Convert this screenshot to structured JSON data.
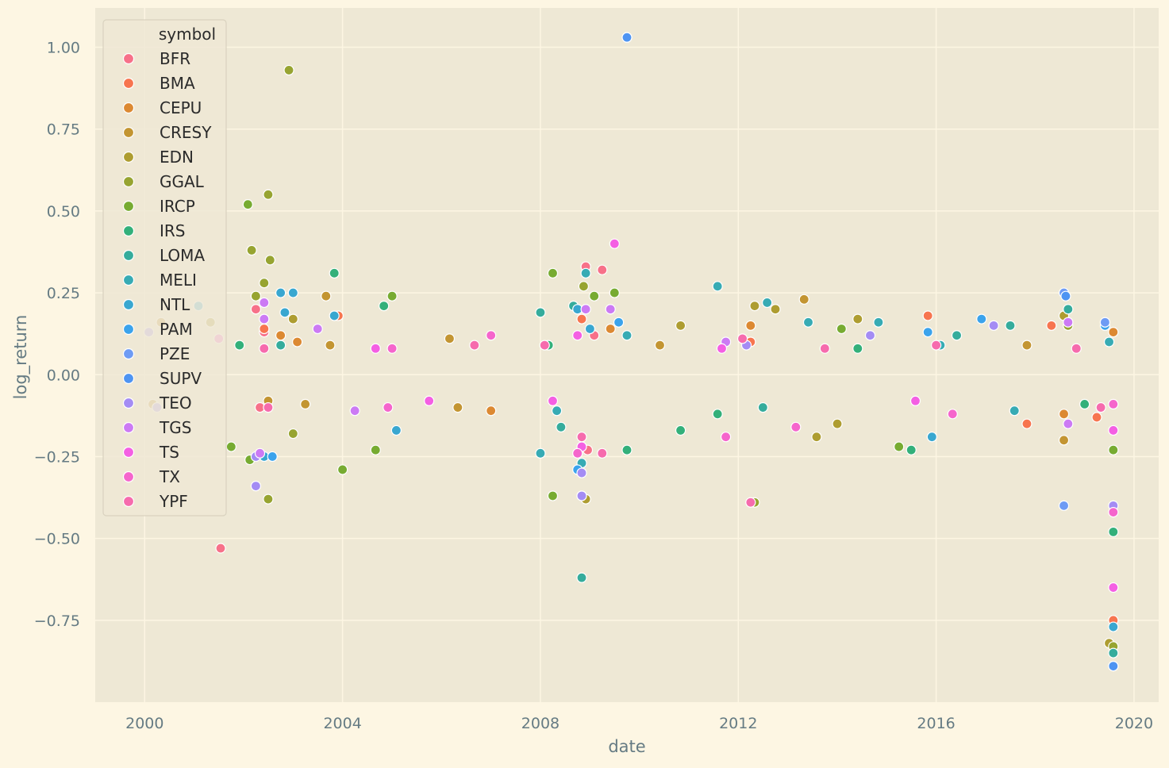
{
  "chart_data": {
    "type": "scatter",
    "title": "",
    "xlabel": "date",
    "ylabel": "log_return",
    "xlim": [
      "1999-01-01",
      "2020-07-01"
    ],
    "ylim": [
      -1.0,
      1.12
    ],
    "x_ticks": [
      "2000",
      "2004",
      "2008",
      "2012",
      "2016",
      "2020"
    ],
    "y_ticks": [
      "−0.75",
      "−0.50",
      "−0.25",
      "0.00",
      "0.25",
      "0.50",
      "0.75",
      "1.00"
    ],
    "y_tick_values": [
      -0.75,
      -0.5,
      -0.25,
      0.0,
      0.25,
      0.5,
      0.75,
      1.0
    ],
    "grid": true,
    "legend": {
      "title": "symbol",
      "placement": "top-left"
    },
    "series": [
      {
        "name": "BFR",
        "color": "#f77189",
        "points": [
          [
            "2001-07-15",
            -0.53
          ],
          [
            "2002-03-01",
            0.38
          ],
          [
            "2002-04-01",
            0.2
          ],
          [
            "2002-06-01",
            0.13
          ],
          [
            "2002-05-01",
            -0.1
          ],
          [
            "2008-12-01",
            0.33
          ],
          [
            "2008-12-15",
            -0.23
          ],
          [
            "2009-04-01",
            0.32
          ],
          [
            "2009-02-01",
            0.12
          ]
        ]
      },
      {
        "name": "BMA",
        "color": "#f7754f",
        "points": [
          [
            "2002-06-01",
            0.14
          ],
          [
            "2003-12-01",
            0.18
          ],
          [
            "2008-11-01",
            0.17
          ],
          [
            "2012-04-01",
            0.1
          ],
          [
            "2015-11-01",
            0.18
          ],
          [
            "2018-05-01",
            0.15
          ],
          [
            "2019-04-01",
            -0.13
          ],
          [
            "2019-08-01",
            -0.75
          ],
          [
            "2017-11-01",
            -0.15
          ]
        ]
      },
      {
        "name": "CEPU",
        "color": "#dc8932",
        "points": [
          [
            "2002-10-01",
            0.12
          ],
          [
            "2003-02-01",
            0.1
          ],
          [
            "2007-01-01",
            -0.11
          ],
          [
            "2009-06-01",
            0.14
          ],
          [
            "2012-04-01",
            0.15
          ],
          [
            "2018-08-01",
            -0.12
          ],
          [
            "2019-08-01",
            0.13
          ]
        ]
      },
      {
        "name": "CRESY",
        "color": "#c39532",
        "points": [
          [
            "2000-05-01",
            0.16
          ],
          [
            "2000-03-01",
            -0.09
          ],
          [
            "2003-09-01",
            0.24
          ],
          [
            "2003-10-01",
            0.09
          ],
          [
            "2006-03-01",
            0.11
          ],
          [
            "2006-05-01",
            -0.1
          ],
          [
            "2010-06-01",
            0.09
          ],
          [
            "2013-05-01",
            0.23
          ],
          [
            "2017-11-01",
            0.09
          ],
          [
            "2018-08-01",
            -0.2
          ],
          [
            "2003-04-01",
            -0.09
          ],
          [
            "2002-07-01",
            -0.08
          ]
        ]
      },
      {
        "name": "EDN",
        "color": "#ae9d31",
        "points": [
          [
            "2001-05-01",
            0.16
          ],
          [
            "2003-01-01",
            0.17
          ],
          [
            "2008-12-01",
            -0.38
          ],
          [
            "2012-05-01",
            0.21
          ],
          [
            "2012-10-01",
            0.2
          ],
          [
            "2013-08-01",
            -0.19
          ],
          [
            "2014-06-01",
            0.17
          ],
          [
            "2018-08-01",
            0.18
          ],
          [
            "2019-07-01",
            -0.82
          ],
          [
            "2010-11-01",
            0.15
          ],
          [
            "2014-01-01",
            -0.15
          ]
        ]
      },
      {
        "name": "GGAL",
        "color": "#97a431",
        "points": [
          [
            "2002-12-01",
            0.93
          ],
          [
            "2002-07-01",
            0.55
          ],
          [
            "2002-03-01",
            0.38
          ],
          [
            "2002-07-15",
            0.35
          ],
          [
            "2002-06-01",
            0.28
          ],
          [
            "2002-07-01",
            -0.38
          ],
          [
            "2008-11-01",
            -0.37
          ],
          [
            "2008-11-15",
            0.27
          ],
          [
            "2012-05-01",
            -0.39
          ],
          [
            "2018-09-01",
            0.15
          ],
          [
            "2019-08-01",
            -0.83
          ],
          [
            "2002-04-01",
            0.24
          ],
          [
            "2003-01-01",
            -0.18
          ]
        ]
      },
      {
        "name": "IRCP",
        "color": "#77ab31",
        "points": [
          [
            "2002-02-01",
            0.52
          ],
          [
            "2001-10-01",
            -0.22
          ],
          [
            "2002-02-15",
            -0.26
          ],
          [
            "2008-04-01",
            0.31
          ],
          [
            "2008-04-01",
            -0.37
          ],
          [
            "2009-02-01",
            0.24
          ],
          [
            "2009-07-01",
            0.25
          ],
          [
            "2014-02-01",
            0.14
          ],
          [
            "2015-04-01",
            -0.22
          ],
          [
            "2019-08-01",
            -0.23
          ],
          [
            "2004-01-01",
            -0.29
          ],
          [
            "2004-09-01",
            -0.23
          ],
          [
            "2005-01-01",
            0.24
          ]
        ]
      },
      {
        "name": "IRS",
        "color": "#33b07a",
        "points": [
          [
            "2001-12-01",
            0.09
          ],
          [
            "2003-11-01",
            0.31
          ],
          [
            "2008-03-01",
            0.09
          ],
          [
            "2009-10-01",
            -0.23
          ],
          [
            "2010-11-01",
            -0.17
          ],
          [
            "2011-08-01",
            -0.12
          ],
          [
            "2014-06-01",
            0.08
          ],
          [
            "2015-07-01",
            -0.23
          ],
          [
            "2019-08-01",
            -0.48
          ],
          [
            "2004-11-01",
            0.21
          ],
          [
            "2019-01-01",
            -0.09
          ]
        ]
      },
      {
        "name": "LOMA",
        "color": "#35ac9c",
        "points": [
          [
            "2002-10-01",
            0.09
          ],
          [
            "2008-09-01",
            0.21
          ],
          [
            "2008-11-01",
            -0.62
          ],
          [
            "2008-06-01",
            -0.16
          ],
          [
            "2012-07-01",
            -0.1
          ],
          [
            "2016-06-01",
            0.12
          ],
          [
            "2017-07-01",
            0.15
          ],
          [
            "2018-09-01",
            0.2
          ],
          [
            "2019-08-01",
            -0.85
          ],
          [
            "2008-01-01",
            0.19
          ]
        ]
      },
      {
        "name": "MELI",
        "color": "#37abb4",
        "points": [
          [
            "2008-01-01",
            -0.24
          ],
          [
            "2008-05-01",
            -0.11
          ],
          [
            "2008-12-01",
            0.31
          ],
          [
            "2011-08-01",
            0.27
          ],
          [
            "2012-08-01",
            0.22
          ],
          [
            "2013-06-01",
            0.16
          ],
          [
            "2014-11-01",
            0.16
          ],
          [
            "2016-02-01",
            0.09
          ],
          [
            "2017-08-01",
            -0.11
          ],
          [
            "2019-07-01",
            0.1
          ],
          [
            "2008-11-01",
            -0.27
          ],
          [
            "2009-10-01",
            0.12
          ]
        ]
      },
      {
        "name": "NTL",
        "color": "#39a7d0",
        "points": [
          [
            "2001-02-01",
            0.21
          ],
          [
            "2002-10-01",
            0.25
          ],
          [
            "2002-11-01",
            0.19
          ],
          [
            "2003-01-01",
            0.25
          ],
          [
            "2003-11-01",
            0.18
          ],
          [
            "2005-02-01",
            -0.17
          ],
          [
            "2008-10-01",
            0.2
          ],
          [
            "2009-01-01",
            0.14
          ],
          [
            "2015-12-01",
            -0.19
          ],
          [
            "2019-08-01",
            -0.77
          ],
          [
            "2002-06-01",
            -0.25
          ]
        ]
      },
      {
        "name": "PAM",
        "color": "#3ba3ec",
        "points": [
          [
            "2002-08-01",
            -0.25
          ],
          [
            "2009-08-01",
            0.16
          ],
          [
            "2015-11-01",
            0.13
          ],
          [
            "2016-12-01",
            0.17
          ],
          [
            "2019-06-01",
            0.15
          ],
          [
            "2019-08-01",
            -0.89
          ],
          [
            "2008-10-01",
            -0.29
          ]
        ]
      },
      {
        "name": "PZE",
        "color": "#6e9bf4",
        "points": [
          [
            "2018-08-01",
            0.25
          ],
          [
            "2018-08-01",
            -0.4
          ],
          [
            "2019-06-01",
            0.16
          ],
          [
            "2009-10-01",
            1.03
          ]
        ]
      },
      {
        "name": "SUPV",
        "color": "#4e94f2",
        "points": [
          [
            "2009-10-01",
            1.03
          ],
          [
            "2018-08-15",
            0.24
          ],
          [
            "2019-08-01",
            -0.89
          ]
        ]
      },
      {
        "name": "TEO",
        "color": "#a48cf4",
        "points": [
          [
            "2000-02-01",
            0.13
          ],
          [
            "2000-04-01",
            -0.1
          ],
          [
            "2002-04-01",
            -0.34
          ],
          [
            "2002-04-01",
            -0.25
          ],
          [
            "2008-11-01",
            -0.37
          ],
          [
            "2008-11-01",
            -0.3
          ],
          [
            "2012-03-01",
            0.09
          ],
          [
            "2019-08-01",
            -0.4
          ],
          [
            "2017-03-01",
            0.15
          ],
          [
            "2014-09-01",
            0.12
          ]
        ]
      },
      {
        "name": "TGS",
        "color": "#cc7af4",
        "points": [
          [
            "2002-06-01",
            0.22
          ],
          [
            "2002-05-01",
            -0.24
          ],
          [
            "2002-06-01",
            0.17
          ],
          [
            "2008-12-01",
            0.2
          ],
          [
            "2009-06-01",
            0.2
          ],
          [
            "2011-10-01",
            0.1
          ],
          [
            "2018-09-01",
            0.16
          ],
          [
            "2018-09-01",
            -0.15
          ],
          [
            "2003-07-01",
            0.14
          ],
          [
            "2004-04-01",
            -0.11
          ]
        ]
      },
      {
        "name": "TS",
        "color": "#f45fe3",
        "points": [
          [
            "2005-10-01",
            -0.08
          ],
          [
            "2008-04-01",
            -0.08
          ],
          [
            "2008-11-01",
            -0.22
          ],
          [
            "2008-10-01",
            0.12
          ],
          [
            "2009-07-01",
            0.4
          ],
          [
            "2011-09-01",
            0.08
          ],
          [
            "2015-08-01",
            -0.08
          ],
          [
            "2019-08-01",
            -0.65
          ],
          [
            "2019-08-01",
            -0.17
          ],
          [
            "2004-09-01",
            0.08
          ]
        ]
      },
      {
        "name": "TX",
        "color": "#f565cc",
        "points": [
          [
            "2001-07-01",
            0.11
          ],
          [
            "2004-12-01",
            -0.1
          ],
          [
            "2007-01-01",
            0.12
          ],
          [
            "2008-10-01",
            -0.24
          ],
          [
            "2011-10-01",
            -0.19
          ],
          [
            "2013-03-01",
            -0.16
          ],
          [
            "2016-05-01",
            -0.12
          ],
          [
            "2019-08-01",
            -0.42
          ],
          [
            "2019-08-01",
            -0.09
          ],
          [
            "2005-01-01",
            0.08
          ]
        ]
      },
      {
        "name": "YPF",
        "color": "#f66bad",
        "points": [
          [
            "2002-06-01",
            0.08
          ],
          [
            "2002-07-01",
            -0.1
          ],
          [
            "2006-09-01",
            0.09
          ],
          [
            "2008-02-01",
            0.09
          ],
          [
            "2008-11-01",
            -0.19
          ],
          [
            "2009-04-01",
            -0.24
          ],
          [
            "2012-04-01",
            -0.39
          ],
          [
            "2013-10-01",
            0.08
          ],
          [
            "2018-11-01",
            0.08
          ],
          [
            "2019-05-01",
            -0.1
          ],
          [
            "2012-02-01",
            0.11
          ],
          [
            "2016-01-01",
            0.09
          ]
        ]
      }
    ]
  }
}
